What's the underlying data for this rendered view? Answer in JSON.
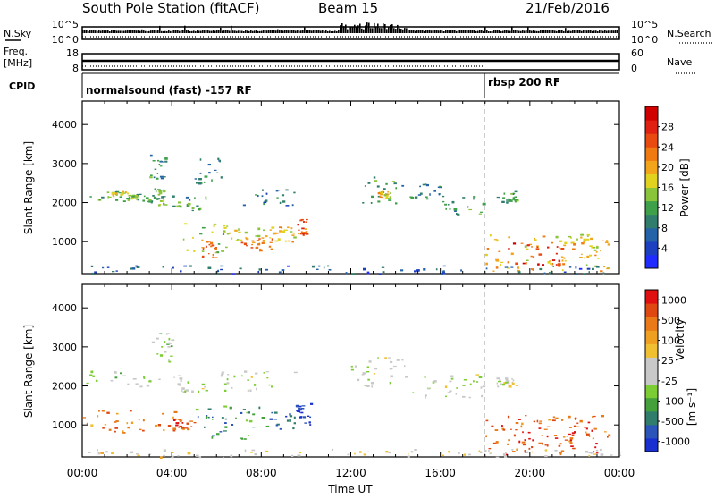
{
  "header": {
    "station_title": "South Pole Station (fitACF)",
    "beam_label": "Beam 15",
    "date_label": "21/Feb/2016"
  },
  "top_panels": {
    "nsky": {
      "left_label": "N.Sky",
      "left_ticks": [
        "10^5",
        "10^0"
      ],
      "right_label": "N.Search",
      "right_ticks": [
        "10^5",
        "10^0"
      ]
    },
    "freq": {
      "left_label_line1": "Freq.",
      "left_label_line2": "[MHz]",
      "left_ticks": [
        "18",
        "8"
      ],
      "right_label": "Nave",
      "right_ticks": [
        "60",
        "0"
      ]
    },
    "cpid": {
      "left_label": "CPID",
      "segments": [
        {
          "label": "normalsound (fast) -157 RF",
          "start_hour": 0
        },
        {
          "label": "rbsp 200 RF",
          "start_hour": 18
        }
      ]
    }
  },
  "chart_data": [
    {
      "type": "heatmap",
      "quantity": "Power",
      "ylabel": "Slant Range [km]",
      "xlabel": "",
      "xlim": [
        0,
        24
      ],
      "ylim": [
        180,
        4600
      ],
      "x_ticks": [
        "00:00",
        "04:00",
        "08:00",
        "12:00",
        "16:00",
        "20:00",
        "00:00"
      ],
      "y_ticks": [
        1000,
        2000,
        3000,
        4000
      ],
      "colorbar_label": "Power [dB]",
      "colorbar_ticks": [
        "4",
        "8",
        "12",
        "16",
        "20",
        "24",
        "28"
      ],
      "colorbar_colors": [
        "#1f2bff",
        "#1c40c0",
        "#2563a8",
        "#2f7d6a",
        "#3ea14a",
        "#8ac43a",
        "#e0d21e",
        "#f2a51a",
        "#ef7a12",
        "#e84a0f",
        "#e02010",
        "#d00000"
      ],
      "regions": [
        {
          "t0": 0.0,
          "t1": 3.0,
          "r0": 2050,
          "r1": 2300,
          "v": 0.35
        },
        {
          "t0": 1.0,
          "t1": 2.4,
          "r0": 2150,
          "r1": 2300,
          "v": 0.55
        },
        {
          "t0": 2.0,
          "t1": 3.2,
          "r0": 2000,
          "r1": 2200,
          "v": 0.42
        },
        {
          "t0": 3.0,
          "t1": 3.7,
          "r0": 2600,
          "r1": 3300,
          "v": 0.3
        },
        {
          "t0": 3.2,
          "t1": 3.7,
          "r0": 1900,
          "r1": 2400,
          "v": 0.45
        },
        {
          "t0": 4.0,
          "t1": 5.5,
          "r0": 1800,
          "r1": 2200,
          "v": 0.35
        },
        {
          "t0": 4.5,
          "t1": 6.5,
          "r0": 700,
          "r1": 1500,
          "v": 0.45
        },
        {
          "t0": 5.3,
          "t1": 6.0,
          "r0": 600,
          "r1": 1100,
          "v": 0.75
        },
        {
          "t0": 6.5,
          "t1": 8.5,
          "r0": 1000,
          "r1": 1400,
          "v": 0.55
        },
        {
          "t0": 7.0,
          "t1": 8.5,
          "r0": 800,
          "r1": 1100,
          "v": 0.72
        },
        {
          "t0": 8.5,
          "t1": 9.5,
          "r0": 1000,
          "r1": 1400,
          "v": 0.6
        },
        {
          "t0": 9.6,
          "t1": 10.0,
          "r0": 1200,
          "r1": 1600,
          "v": 0.75
        },
        {
          "t0": 5.0,
          "t1": 6.2,
          "r0": 2500,
          "r1": 3200,
          "v": 0.25
        },
        {
          "t0": 7.0,
          "t1": 9.5,
          "r0": 1900,
          "r1": 2400,
          "v": 0.22
        },
        {
          "t0": 12.5,
          "t1": 14.0,
          "r0": 2000,
          "r1": 2700,
          "v": 0.35
        },
        {
          "t0": 13.2,
          "t1": 13.8,
          "r0": 2100,
          "r1": 2300,
          "v": 0.55
        },
        {
          "t0": 14.2,
          "t1": 16.0,
          "r0": 2100,
          "r1": 2500,
          "v": 0.3
        },
        {
          "t0": 16.0,
          "t1": 18.0,
          "r0": 1700,
          "r1": 2200,
          "v": 0.32
        },
        {
          "t0": 18.5,
          "t1": 19.5,
          "r0": 2000,
          "r1": 2300,
          "v": 0.35
        },
        {
          "t0": 18.0,
          "t1": 23.5,
          "r0": 250,
          "r1": 1200,
          "v": 0.6
        },
        {
          "t0": 19.0,
          "t1": 21.5,
          "r0": 400,
          "r1": 1000,
          "v": 0.85
        },
        {
          "t0": 21.5,
          "t1": 23.0,
          "r0": 600,
          "r1": 1200,
          "v": 0.55
        },
        {
          "t0": 0.0,
          "t1": 24.0,
          "r0": 180,
          "r1": 400,
          "v": 0.2
        }
      ]
    },
    {
      "type": "heatmap",
      "quantity": "Velocity",
      "ylabel": "Slant Range [km]",
      "xlabel": "Time UT",
      "xlim": [
        0,
        24
      ],
      "ylim": [
        180,
        4600
      ],
      "x_ticks": [
        "00:00",
        "04:00",
        "08:00",
        "12:00",
        "16:00",
        "20:00",
        "00:00"
      ],
      "y_ticks": [
        1000,
        2000,
        3000,
        4000
      ],
      "colorbar_label_main": "Velocity",
      "colorbar_label_unit": "[m s⁻¹]",
      "colorbar_ticks": [
        "1000",
        "500",
        "100",
        "25",
        "-25",
        "-100",
        "-500",
        "-1000"
      ],
      "colorbar_colors": [
        "#1a2fd0",
        "#2b55b8",
        "#2f7d6a",
        "#44a03a",
        "#7ccc33",
        "#c8c8c8",
        "#c8c8c8",
        "#f0c030",
        "#f0a020",
        "#ea7a18",
        "#e04812",
        "#e01010"
      ],
      "regions": [
        {
          "t0": 0.0,
          "t1": 3.5,
          "r0": 2000,
          "r1": 2400,
          "v": 0.45
        },
        {
          "t0": 3.0,
          "t1": 4.0,
          "r0": 2600,
          "r1": 3400,
          "v": 0.45
        },
        {
          "t0": 4.0,
          "t1": 5.5,
          "r0": 1800,
          "r1": 2300,
          "v": 0.48
        },
        {
          "t0": 0.0,
          "t1": 4.5,
          "r0": 800,
          "r1": 1400,
          "v": 0.78
        },
        {
          "t0": 4.0,
          "t1": 5.0,
          "r0": 900,
          "r1": 1200,
          "v": 0.82
        },
        {
          "t0": 5.0,
          "t1": 7.5,
          "r0": 600,
          "r1": 1500,
          "v": 0.25
        },
        {
          "t0": 7.5,
          "t1": 9.5,
          "r0": 900,
          "r1": 1500,
          "v": 0.2
        },
        {
          "t0": 9.5,
          "t1": 10.2,
          "r0": 1000,
          "r1": 1600,
          "v": 0.05
        },
        {
          "t0": 6.0,
          "t1": 9.5,
          "r0": 1900,
          "r1": 2400,
          "v": 0.48
        },
        {
          "t0": 12.0,
          "t1": 14.5,
          "r0": 2000,
          "r1": 2800,
          "v": 0.47
        },
        {
          "t0": 14.5,
          "t1": 18.0,
          "r0": 1700,
          "r1": 2300,
          "v": 0.48
        },
        {
          "t0": 18.5,
          "t1": 19.5,
          "r0": 2000,
          "r1": 2300,
          "v": 0.5
        },
        {
          "t0": 18.0,
          "t1": 23.5,
          "r0": 250,
          "r1": 1300,
          "v": 0.85
        },
        {
          "t0": 19.0,
          "t1": 22.0,
          "r0": 400,
          "r1": 900,
          "v": 0.92
        },
        {
          "t0": 0.0,
          "t1": 24.0,
          "r0": 180,
          "r1": 400,
          "v": 0.55
        }
      ]
    }
  ]
}
